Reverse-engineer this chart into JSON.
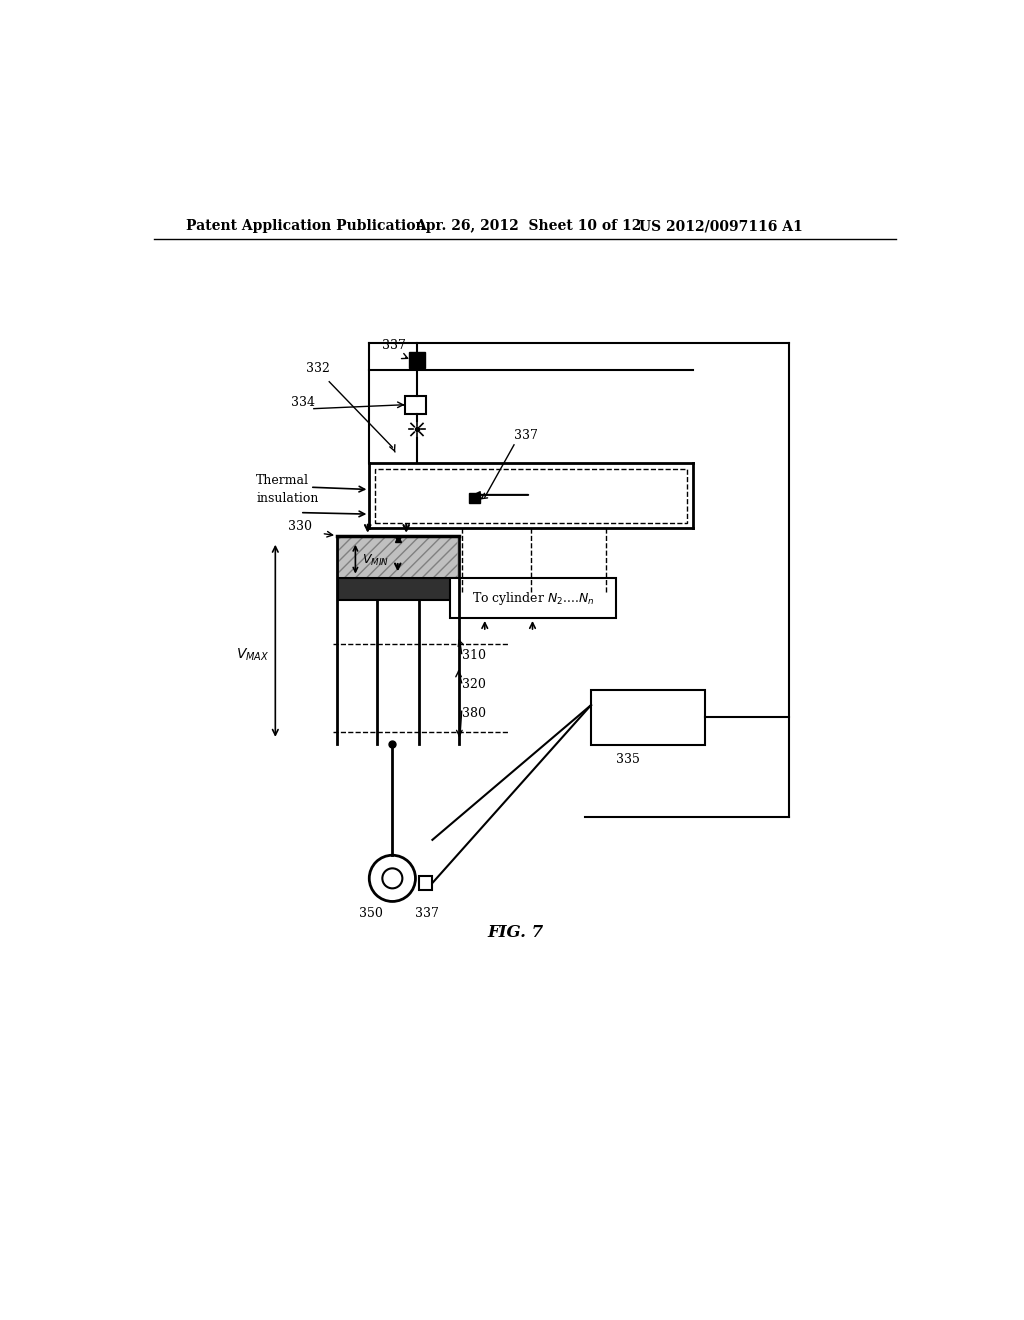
{
  "bg_color": "#ffffff",
  "header_left": "Patent Application Publication",
  "header_mid": "Apr. 26, 2012  Sheet 10 of 12",
  "header_right": "US 2012/0097116 A1",
  "fig_label": "FIG. 7"
}
